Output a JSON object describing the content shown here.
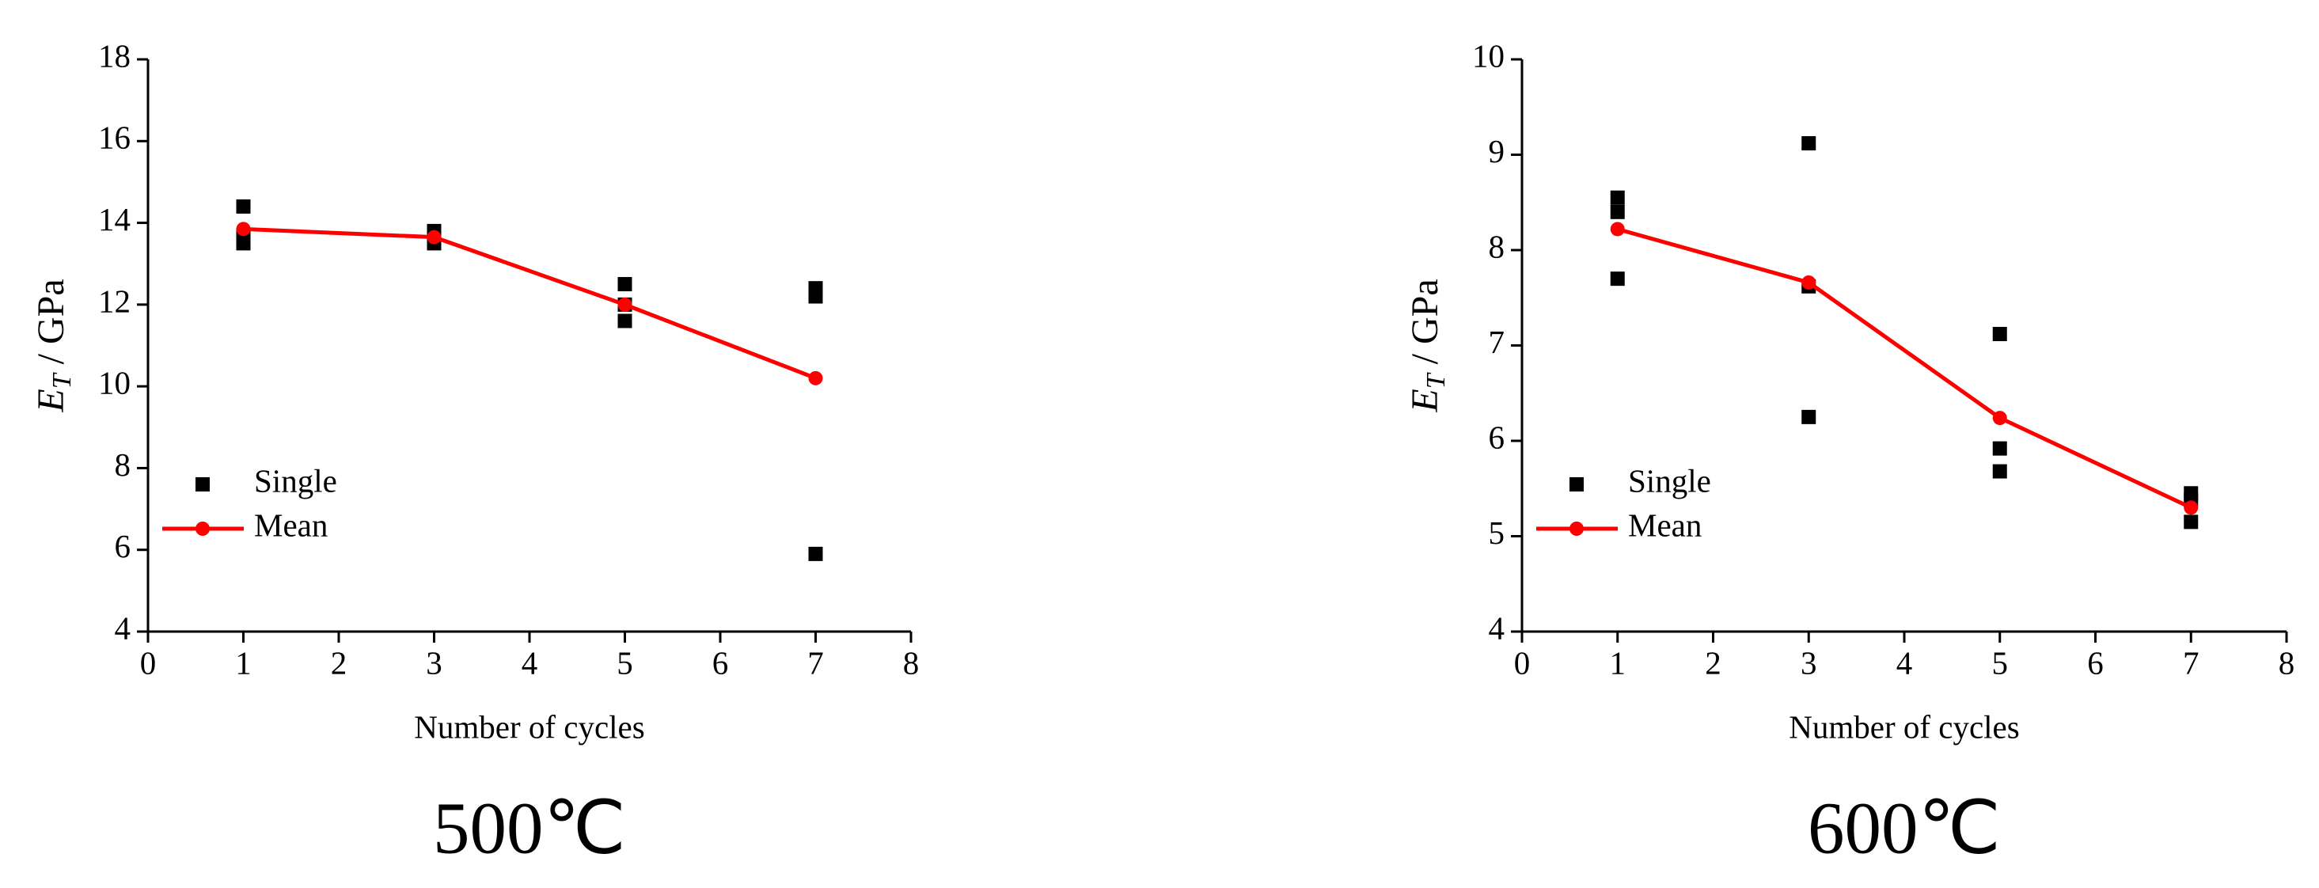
{
  "chart_data": [
    {
      "type": "line",
      "caption": "500℃",
      "xlabel": "Number of cycles",
      "ylabel": {
        "symbol": "E",
        "subscript": "T",
        "unit": " / GPa"
      },
      "xlim": [
        0,
        8
      ],
      "xticks": [
        0,
        1,
        2,
        3,
        4,
        5,
        6,
        7,
        8
      ],
      "ylim": [
        4,
        18
      ],
      "yticks": [
        4,
        6,
        8,
        10,
        12,
        14,
        16,
        18
      ],
      "legend": "lower left",
      "series": [
        {
          "name": "Single",
          "mode": "markers",
          "color": "#000000",
          "x": [
            1,
            1,
            1,
            3,
            3,
            3,
            5,
            5,
            5,
            7,
            7,
            7
          ],
          "y": [
            14.4,
            13.5,
            13.7,
            13.8,
            13.5,
            13.6,
            12.5,
            11.6,
            12.0,
            12.4,
            12.2,
            5.9
          ]
        },
        {
          "name": "Mean",
          "mode": "lines+markers",
          "color": "#ff0000",
          "x": [
            1,
            3,
            5,
            7
          ],
          "y": [
            13.85,
            13.65,
            12.0,
            10.2
          ]
        }
      ]
    },
    {
      "type": "line",
      "caption": "600℃",
      "xlabel": "Number of cycles",
      "ylabel": {
        "symbol": "E",
        "subscript": "T",
        "unit": " / GPa"
      },
      "xlim": [
        0,
        8
      ],
      "xticks": [
        0,
        1,
        2,
        3,
        4,
        5,
        6,
        7,
        8
      ],
      "ylim": [
        4,
        10
      ],
      "yticks": [
        4,
        5,
        6,
        7,
        8,
        9,
        10
      ],
      "legend": "lower left",
      "series": [
        {
          "name": "Single",
          "mode": "markers",
          "color": "#000000",
          "x": [
            1,
            1,
            1,
            3,
            3,
            3,
            5,
            5,
            5,
            7,
            7,
            7
          ],
          "y": [
            8.55,
            8.4,
            7.7,
            9.12,
            7.62,
            6.25,
            7.12,
            5.92,
            5.68,
            5.45,
            5.38,
            5.15
          ]
        },
        {
          "name": "Mean",
          "mode": "lines+markers",
          "color": "#ff0000",
          "x": [
            1,
            3,
            5,
            7
          ],
          "y": [
            8.22,
            7.66,
            6.24,
            5.3
          ]
        }
      ]
    }
  ]
}
